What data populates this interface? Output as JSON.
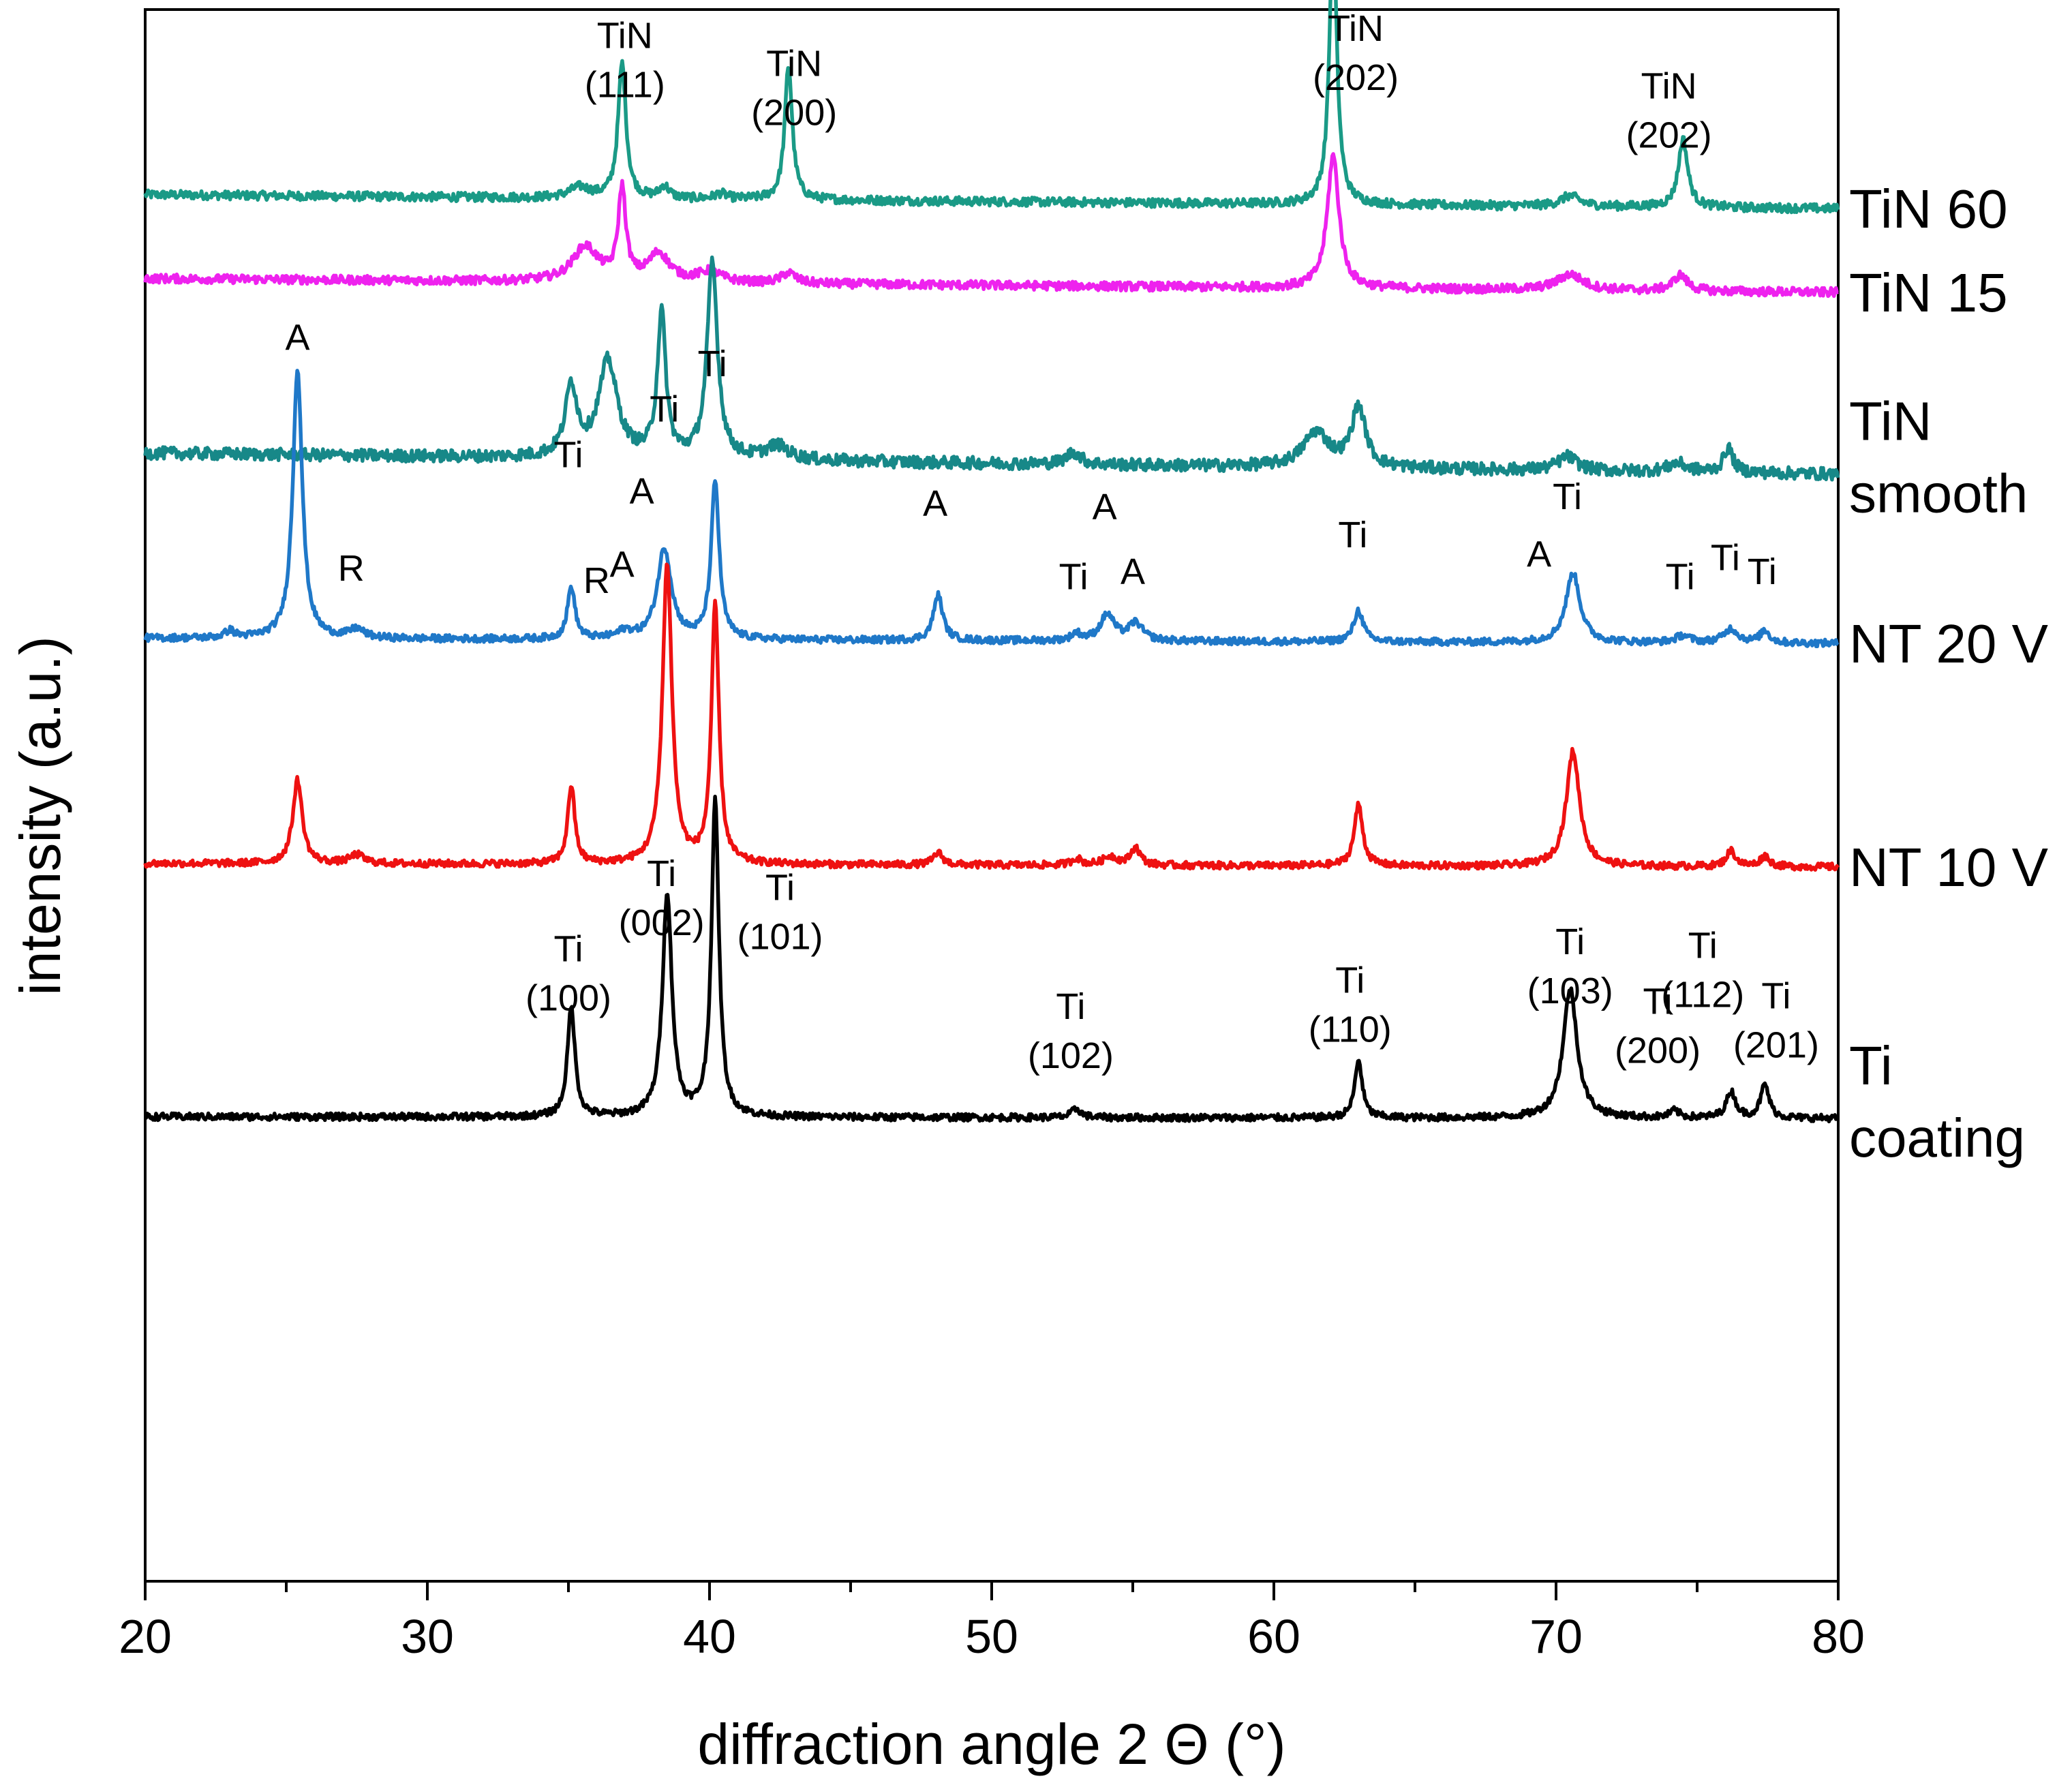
{
  "chart_data": {
    "type": "line",
    "title": "",
    "xlabel": "diffraction angle 2 Θ (°)",
    "ylabel": "intensity (a.u.)",
    "xlim": [
      20,
      80
    ],
    "xticks": [
      20,
      30,
      40,
      50,
      60,
      70,
      80
    ],
    "ylim": [
      0,
      900
    ],
    "y_ticks_shown": false,
    "series": [
      {
        "name": "TiN 60",
        "label_lines": [
          "TiN 60"
        ],
        "color": "#1a9a86",
        "offset": 786,
        "baseline_start": 8,
        "baseline_end": 0,
        "peaks": [
          {
            "x": 35.4,
            "h": 6,
            "w": 0.45
          },
          {
            "x": 36.9,
            "h": 77,
            "w": 0.17
          },
          {
            "x": 38.4,
            "h": 7,
            "w": 0.2
          },
          {
            "x": 40.4,
            "h": 3,
            "w": 0.25
          },
          {
            "x": 42.8,
            "h": 77,
            "w": 0.16
          },
          {
            "x": 62.1,
            "h": 158,
            "w": 0.16
          },
          {
            "x": 70.5,
            "h": 6,
            "w": 0.4
          },
          {
            "x": 74.5,
            "h": 39,
            "w": 0.2
          }
        ],
        "noise": 2.5
      },
      {
        "name": "TiN 15",
        "label_lines": [
          "TiN 15"
        ],
        "color": "#ee22ee",
        "offset": 738,
        "baseline_start": 8,
        "baseline_end": 0,
        "peaks": [
          {
            "x": 35.6,
            "h": 20,
            "w": 0.55
          },
          {
            "x": 36.9,
            "h": 52,
            "w": 0.16
          },
          {
            "x": 38.2,
            "h": 16,
            "w": 0.45
          },
          {
            "x": 40.0,
            "h": 6,
            "w": 0.5
          },
          {
            "x": 42.8,
            "h": 6,
            "w": 0.3
          },
          {
            "x": 62.1,
            "h": 76,
            "w": 0.25
          },
          {
            "x": 70.5,
            "h": 9,
            "w": 0.55
          },
          {
            "x": 74.4,
            "h": 9,
            "w": 0.3
          }
        ],
        "noise": 2.5
      },
      {
        "name": "TiN smooth",
        "label_lines": [
          "TiN",
          "smooth"
        ],
        "color": "#178888",
        "offset": 634,
        "baseline_start": 12,
        "baseline_end": 0,
        "peaks": [
          {
            "x": 35.1,
            "h": 40,
            "w": 0.25
          },
          {
            "x": 36.4,
            "h": 55,
            "w": 0.4
          },
          {
            "x": 38.3,
            "h": 82,
            "w": 0.18
          },
          {
            "x": 40.1,
            "h": 112,
            "w": 0.22
          },
          {
            "x": 42.4,
            "h": 8,
            "w": 0.5
          },
          {
            "x": 52.9,
            "h": 7,
            "w": 0.3
          },
          {
            "x": 61.5,
            "h": 20,
            "w": 0.55
          },
          {
            "x": 63.0,
            "h": 34,
            "w": 0.3
          },
          {
            "x": 70.4,
            "h": 8,
            "w": 0.4
          },
          {
            "x": 74.3,
            "h": 5,
            "w": 0.4
          },
          {
            "x": 76.1,
            "h": 14,
            "w": 0.2
          }
        ],
        "noise": 3.5
      },
      {
        "name": "NT 20 V",
        "label_lines": [
          "NT 20 V"
        ],
        "color": "#1f78c8",
        "offset": 537,
        "baseline_start": 3,
        "baseline_end": 0,
        "peaks": [
          {
            "x": 23.0,
            "h": 4,
            "w": 0.2
          },
          {
            "x": 25.4,
            "h": 155,
            "w": 0.2
          },
          {
            "x": 27.5,
            "h": 5,
            "w": 0.3
          },
          {
            "x": 35.1,
            "h": 30,
            "w": 0.16
          },
          {
            "x": 37.0,
            "h": 4,
            "w": 0.3
          },
          {
            "x": 38.4,
            "h": 52,
            "w": 0.3
          },
          {
            "x": 40.2,
            "h": 90,
            "w": 0.17
          },
          {
            "x": 48.1,
            "h": 26,
            "w": 0.2
          },
          {
            "x": 53.0,
            "h": 4,
            "w": 0.2
          },
          {
            "x": 54.1,
            "h": 15,
            "w": 0.3
          },
          {
            "x": 55.1,
            "h": 10,
            "w": 0.3
          },
          {
            "x": 63.0,
            "h": 18,
            "w": 0.2
          },
          {
            "x": 70.6,
            "h": 40,
            "w": 0.3
          },
          {
            "x": 74.5,
            "h": 4,
            "w": 0.3
          },
          {
            "x": 76.2,
            "h": 8,
            "w": 0.3
          },
          {
            "x": 77.4,
            "h": 7,
            "w": 0.2
          }
        ],
        "noise": 2.0
      },
      {
        "name": "NT 10 V",
        "label_lines": [
          "NT 10 V"
        ],
        "color": "#ee1111",
        "offset": 409,
        "baseline_start": 2,
        "baseline_end": 0,
        "peaks": [
          {
            "x": 25.4,
            "h": 48,
            "w": 0.2
          },
          {
            "x": 27.5,
            "h": 5,
            "w": 0.3
          },
          {
            "x": 35.1,
            "h": 45,
            "w": 0.15
          },
          {
            "x": 38.5,
            "h": 172,
            "w": 0.2
          },
          {
            "x": 40.2,
            "h": 147,
            "w": 0.16
          },
          {
            "x": 48.1,
            "h": 7,
            "w": 0.2
          },
          {
            "x": 53.0,
            "h": 4,
            "w": 0.2
          },
          {
            "x": 54.2,
            "h": 5,
            "w": 0.3
          },
          {
            "x": 55.1,
            "h": 10,
            "w": 0.2
          },
          {
            "x": 63.0,
            "h": 35,
            "w": 0.18
          },
          {
            "x": 70.6,
            "h": 66,
            "w": 0.28
          },
          {
            "x": 76.2,
            "h": 9,
            "w": 0.2
          },
          {
            "x": 77.4,
            "h": 6,
            "w": 0.2
          }
        ],
        "noise": 2.0
      },
      {
        "name": "Ti coating",
        "label_lines": [
          "Ti",
          "coating"
        ],
        "color": "#000000",
        "offset": 265,
        "baseline_start": 1,
        "baseline_end": 0,
        "peaks": [
          {
            "x": 35.1,
            "h": 63,
            "w": 0.16
          },
          {
            "x": 38.5,
            "h": 128,
            "w": 0.2
          },
          {
            "x": 40.2,
            "h": 180,
            "w": 0.16
          },
          {
            "x": 53.0,
            "h": 5,
            "w": 0.2
          },
          {
            "x": 63.0,
            "h": 33,
            "w": 0.16
          },
          {
            "x": 70.5,
            "h": 74,
            "w": 0.3
          },
          {
            "x": 74.2,
            "h": 4,
            "w": 0.2
          },
          {
            "x": 76.2,
            "h": 15,
            "w": 0.2
          },
          {
            "x": 77.4,
            "h": 19,
            "w": 0.18
          }
        ],
        "noise": 2.0
      }
    ],
    "annotations": [
      {
        "lines": [
          "TiN",
          "(111)"
        ],
        "x": 37.0,
        "y": 878
      },
      {
        "lines": [
          "TiN",
          "(200)"
        ],
        "x": 43.0,
        "y": 862
      },
      {
        "lines": [
          "TiN",
          "(202)"
        ],
        "x": 62.9,
        "y": 882
      },
      {
        "lines": [
          "TiN",
          "(202)"
        ],
        "x": 74.0,
        "y": 849
      },
      {
        "lines": [
          "A"
        ],
        "x": 25.4,
        "y": 705
      },
      {
        "lines": [
          "R"
        ],
        "x": 27.3,
        "y": 573
      },
      {
        "lines": [
          "Ti"
        ],
        "x": 35.0,
        "y": 638
      },
      {
        "lines": [
          "R"
        ],
        "x": 36.0,
        "y": 566
      },
      {
        "lines": [
          "A"
        ],
        "x": 36.9,
        "y": 575
      },
      {
        "lines": [
          "A"
        ],
        "x": 37.6,
        "y": 617
      },
      {
        "lines": [
          "Ti"
        ],
        "x": 38.4,
        "y": 664
      },
      {
        "lines": [
          "Ti"
        ],
        "x": 40.1,
        "y": 690
      },
      {
        "lines": [
          "A"
        ],
        "x": 48.0,
        "y": 610
      },
      {
        "lines": [
          "Ti"
        ],
        "x": 52.9,
        "y": 568
      },
      {
        "lines": [
          "A"
        ],
        "x": 54.0,
        "y": 608
      },
      {
        "lines": [
          "A"
        ],
        "x": 55.0,
        "y": 571
      },
      {
        "lines": [
          "Ti"
        ],
        "x": 62.8,
        "y": 592
      },
      {
        "lines": [
          "A"
        ],
        "x": 69.4,
        "y": 581
      },
      {
        "lines": [
          "Ti"
        ],
        "x": 70.4,
        "y": 614
      },
      {
        "lines": [
          "Ti"
        ],
        "x": 74.4,
        "y": 568
      },
      {
        "lines": [
          "Ti"
        ],
        "x": 76.0,
        "y": 579
      },
      {
        "lines": [
          "Ti"
        ],
        "x": 77.3,
        "y": 571
      },
      {
        "lines": [
          "Ti",
          "(100)"
        ],
        "x": 35.0,
        "y": 355
      },
      {
        "lines": [
          "Ti",
          "(002)"
        ],
        "x": 38.3,
        "y": 398
      },
      {
        "lines": [
          "Ti",
          "(101)"
        ],
        "x": 42.5,
        "y": 390
      },
      {
        "lines": [
          "Ti",
          "(102)"
        ],
        "x": 52.8,
        "y": 322
      },
      {
        "lines": [
          "Ti",
          "(110)"
        ],
        "x": 62.7,
        "y": 337
      },
      {
        "lines": [
          "Ti",
          "(103)"
        ],
        "x": 70.5,
        "y": 359
      },
      {
        "lines": [
          "Ti",
          "(200)"
        ],
        "x": 73.6,
        "y": 325
      },
      {
        "lines": [
          "Ti",
          "(112)"
        ],
        "x": 75.2,
        "y": 357
      },
      {
        "lines": [
          "Ti",
          "(201)"
        ],
        "x": 77.8,
        "y": 328
      }
    ]
  }
}
